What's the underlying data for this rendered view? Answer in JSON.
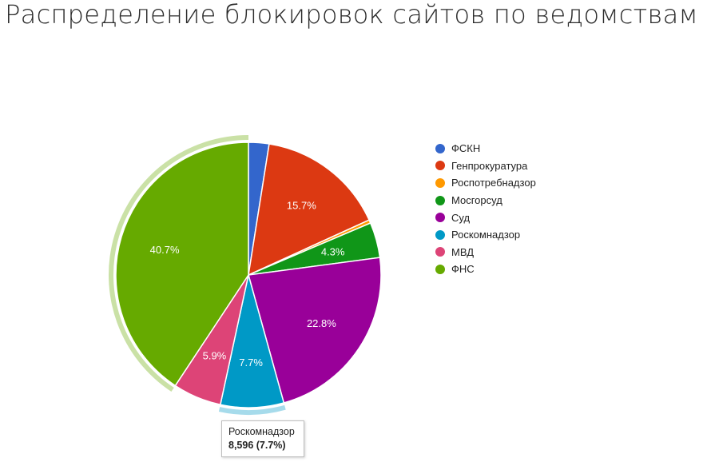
{
  "chart_data": {
    "type": "pie",
    "title": "Распределение блокировок сайтов по ведомствам",
    "slices": [
      {
        "label": "ФСКН",
        "percent": 2.5,
        "color": "#3366cc",
        "data_label": ""
      },
      {
        "label": "Генпрокуратура",
        "percent": 15.7,
        "color": "#dc3912",
        "data_label": "15.7%"
      },
      {
        "label": "Роспотребнадзор",
        "percent": 0.4,
        "color": "#ff9900",
        "data_label": ""
      },
      {
        "label": "Мосгорсуд",
        "percent": 4.3,
        "color": "#109618",
        "data_label": "4.3%"
      },
      {
        "label": "Суд",
        "percent": 22.8,
        "color": "#990099",
        "data_label": "22.8%"
      },
      {
        "label": "Роскомнадзор",
        "percent": 7.7,
        "color": "#0099c6",
        "data_label": "7.7%"
      },
      {
        "label": "МВД",
        "percent": 5.9,
        "color": "#dd4477",
        "data_label": "5.9%"
      },
      {
        "label": "ФНС",
        "percent": 40.7,
        "color": "#66aa00",
        "data_label": "40.7%"
      }
    ],
    "legend_position": "right",
    "highlighted_slices": [
      "Роскомнадзор",
      "ФНС"
    ],
    "tooltip": {
      "label": "Роскомнадзор",
      "value": "8,596 (7.7%)"
    }
  }
}
